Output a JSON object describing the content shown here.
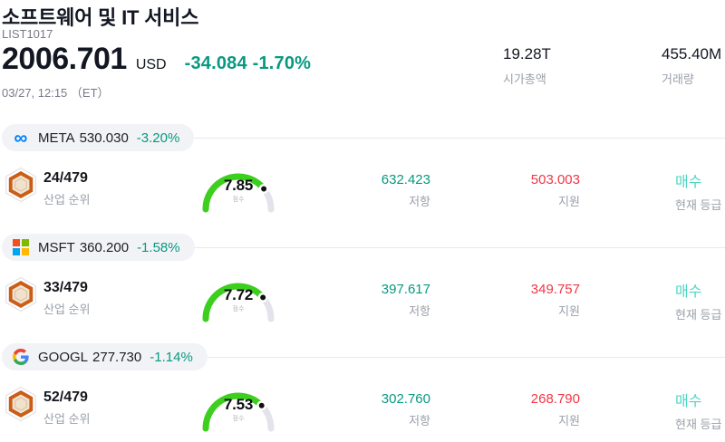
{
  "header": {
    "title": "소프트웨어 및 IT 서비스",
    "symbol_code": "LIST1017",
    "price": "2006.701",
    "currency": "USD",
    "change": "-34.084 -1.70%",
    "datetime": "03/27, 12:15 （ET）",
    "market_cap": {
      "value": "19.28T",
      "label": "시가총액"
    },
    "volume": {
      "value": "455.40M",
      "label": "거래량"
    }
  },
  "labels": {
    "industry_rank": "산업 순위",
    "score": "점수",
    "resistance": "저항",
    "support": "지원",
    "current_rating": "현재 등급"
  },
  "colors": {
    "change_down_teal": "#089981",
    "support_red": "#f23645",
    "rating_buy_cyan": "#4ed5c2",
    "gauge_green": "#3ccf1e",
    "gauge_track": "#e3e3eb",
    "gauge_dot": "#111111",
    "muted_gray": "#9aa0aa",
    "meta_blue": "#0082fb"
  },
  "stocks": [
    {
      "ticker": "META",
      "logo": "meta-infinity-logo",
      "price": "530.030",
      "change": "-3.20%",
      "rank": "24/479",
      "score": 7.85,
      "resistance": "632.423",
      "support": "503.003",
      "rating": "매수"
    },
    {
      "ticker": "MSFT",
      "logo": "microsoft-squares-logo",
      "price": "360.200",
      "change": "-1.58%",
      "rank": "33/479",
      "score": 7.72,
      "resistance": "397.617",
      "support": "349.757",
      "rating": "매수"
    },
    {
      "ticker": "GOOGL",
      "logo": "google-g-logo",
      "price": "277.730",
      "change": "-1.14%",
      "rank": "52/479",
      "score": 7.53,
      "resistance": "302.760",
      "support": "268.790",
      "rating": "매수"
    }
  ]
}
